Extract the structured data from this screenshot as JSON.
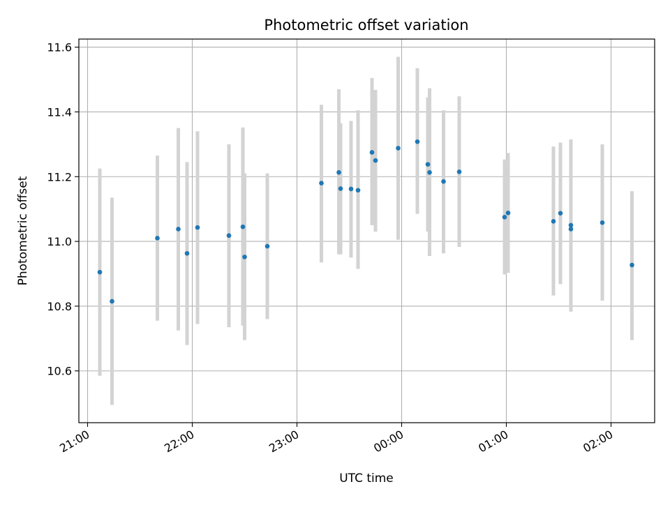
{
  "chart_data": {
    "type": "scatter",
    "title": "Photometric offset variation",
    "xlabel": "UTC time",
    "ylabel": "Photometric offset",
    "x_ticks": [
      "21:00",
      "22:00",
      "23:00",
      "00:00",
      "01:00",
      "02:00"
    ],
    "y_ticks": [
      "10.6",
      "10.8",
      "11.0",
      "11.2",
      "11.4",
      "11.6"
    ],
    "xlim": [
      "20:55",
      "02:25"
    ],
    "ylim": [
      10.44,
      11.625
    ],
    "grid": true,
    "colors": {
      "point": "#1f77b4",
      "errorbar": "#d3d3d3",
      "grid": "#b0b0b0"
    },
    "points": [
      {
        "x": "21:07",
        "y": 10.905,
        "ylow": 10.585,
        "yhigh": 11.225
      },
      {
        "x": "21:14",
        "y": 10.815,
        "ylow": 10.495,
        "yhigh": 11.135
      },
      {
        "x": "21:40",
        "y": 11.01,
        "ylow": 10.755,
        "yhigh": 11.265
      },
      {
        "x": "21:52",
        "y": 11.038,
        "ylow": 10.725,
        "yhigh": 11.35
      },
      {
        "x": "21:57",
        "y": 10.963,
        "ylow": 10.68,
        "yhigh": 11.245
      },
      {
        "x": "22:03",
        "y": 11.043,
        "ylow": 10.745,
        "yhigh": 11.34
      },
      {
        "x": "22:21",
        "y": 11.018,
        "ylow": 10.735,
        "yhigh": 11.3
      },
      {
        "x": "22:29",
        "y": 11.045,
        "ylow": 10.74,
        "yhigh": 11.352
      },
      {
        "x": "22:30",
        "y": 10.952,
        "ylow": 10.695,
        "yhigh": 11.21
      },
      {
        "x": "22:43",
        "y": 10.985,
        "ylow": 10.76,
        "yhigh": 11.21
      },
      {
        "x": "23:14",
        "y": 11.18,
        "ylow": 10.935,
        "yhigh": 11.422
      },
      {
        "x": "23:24",
        "y": 11.213,
        "ylow": 10.96,
        "yhigh": 11.47
      },
      {
        "x": "23:25",
        "y": 11.163,
        "ylow": 10.96,
        "yhigh": 11.365
      },
      {
        "x": "23:31",
        "y": 11.162,
        "ylow": 10.95,
        "yhigh": 11.372
      },
      {
        "x": "23:35",
        "y": 11.158,
        "ylow": 10.915,
        "yhigh": 11.405
      },
      {
        "x": "23:43",
        "y": 11.275,
        "ylow": 11.05,
        "yhigh": 11.505
      },
      {
        "x": "23:45",
        "y": 11.25,
        "ylow": 11.03,
        "yhigh": 11.468
      },
      {
        "x": "23:58",
        "y": 11.288,
        "ylow": 11.005,
        "yhigh": 11.57
      },
      {
        "x": "00:09",
        "y": 11.308,
        "ylow": 11.085,
        "yhigh": 11.535
      },
      {
        "x": "00:15",
        "y": 11.238,
        "ylow": 11.03,
        "yhigh": 11.445
      },
      {
        "x": "00:16",
        "y": 11.213,
        "ylow": 10.955,
        "yhigh": 11.473
      },
      {
        "x": "00:24",
        "y": 11.185,
        "ylow": 10.963,
        "yhigh": 11.405
      },
      {
        "x": "00:33",
        "y": 11.215,
        "ylow": 10.983,
        "yhigh": 11.448
      },
      {
        "x": "00:59",
        "y": 11.075,
        "ylow": 10.898,
        "yhigh": 11.253
      },
      {
        "x": "01:01",
        "y": 11.088,
        "ylow": 10.903,
        "yhigh": 11.273
      },
      {
        "x": "01:27",
        "y": 11.062,
        "ylow": 10.833,
        "yhigh": 11.293
      },
      {
        "x": "01:31",
        "y": 11.087,
        "ylow": 10.868,
        "yhigh": 11.305
      },
      {
        "x": "01:37",
        "y": 11.05,
        "ylow": 10.8,
        "yhigh": 11.315
      },
      {
        "x": "01:37",
        "y": 11.038,
        "ylow": 10.783,
        "yhigh": 11.295
      },
      {
        "x": "01:55",
        "y": 11.058,
        "ylow": 10.817,
        "yhigh": 11.3
      },
      {
        "x": "02:12",
        "y": 10.927,
        "ylow": 10.695,
        "yhigh": 11.155
      }
    ]
  }
}
